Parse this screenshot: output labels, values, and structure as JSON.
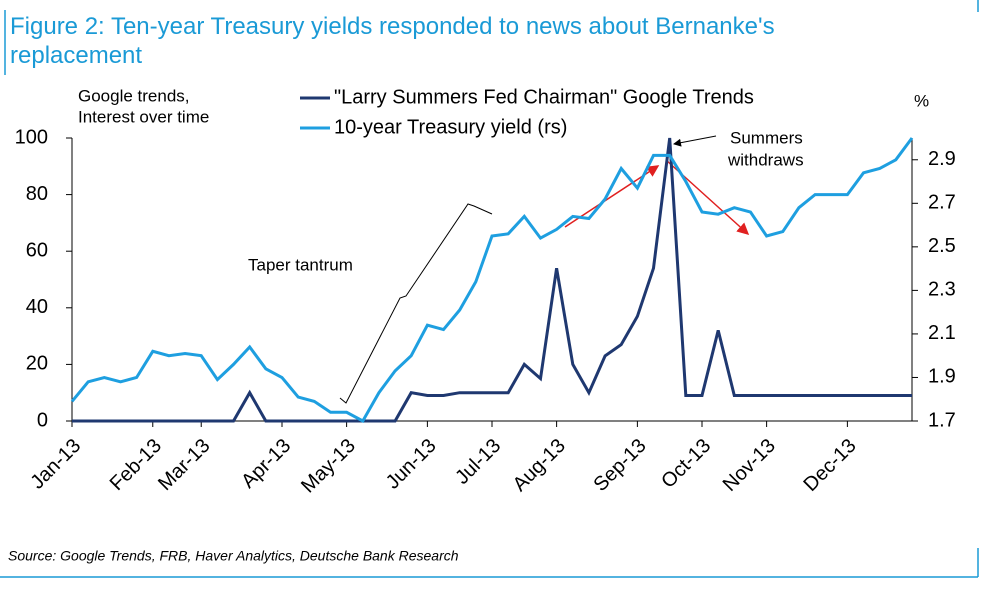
{
  "chart_data": {
    "type": "line",
    "title": "Figure 2: Ten-year Treasury yields responded to news about Bernanke's replacement",
    "ylabel": [
      "Google trends,",
      "Interest over time"
    ],
    "y2label": "%",
    "source": "Source: Google Trends, FRB, Haver Analytics, Deutsche Bank Research",
    "annotations": [
      "Taper tantrum",
      [
        "Summers",
        "withdraws"
      ]
    ],
    "categories": [
      "Jan-13",
      null,
      null,
      null,
      null,
      "Feb-13",
      null,
      null,
      "Mar-13",
      null,
      null,
      null,
      null,
      "Apr-13",
      null,
      null,
      null,
      "May-13",
      null,
      null,
      null,
      null,
      "Jun-13",
      null,
      null,
      null,
      "Jul-13",
      null,
      null,
      null,
      "Aug-13",
      null,
      null,
      null,
      null,
      "Sep-13",
      null,
      null,
      null,
      "Oct-13",
      null,
      null,
      null,
      "Nov-13",
      null,
      null,
      null,
      null,
      "Dec-13",
      null,
      null,
      null,
      null
    ],
    "series": [
      {
        "name": "\"Larry Summers Fed Chairman\" Google Trends",
        "color": "#1f3870",
        "values": [
          0,
          0,
          0,
          0,
          0,
          0,
          0,
          0,
          0,
          0,
          0,
          10,
          0,
          0,
          0,
          0,
          0,
          0,
          0,
          0,
          0,
          10,
          9,
          9,
          10,
          10,
          10,
          10,
          20,
          15,
          54,
          20,
          10,
          23,
          27,
          37,
          54,
          100,
          9,
          9,
          32,
          9,
          9,
          9,
          9,
          9,
          9,
          9,
          9,
          9,
          9,
          9,
          9
        ]
      },
      {
        "name": "10-year Treasury yield (rs)",
        "color": "#1e9fe0",
        "axis": "y2",
        "values": [
          1.79,
          1.88,
          1.9,
          1.88,
          1.9,
          2.02,
          2.0,
          2.01,
          2.0,
          1.89,
          1.96,
          2.04,
          1.94,
          1.9,
          1.81,
          1.79,
          1.74,
          1.74,
          1.7,
          1.83,
          1.93,
          2.0,
          2.14,
          2.12,
          2.21,
          2.34,
          2.55,
          2.56,
          2.64,
          2.54,
          2.58,
          2.64,
          2.63,
          2.72,
          2.86,
          2.77,
          2.92,
          2.92,
          2.8,
          2.66,
          2.65,
          2.68,
          2.66,
          2.55,
          2.57,
          2.68,
          2.74,
          2.74,
          2.74,
          2.84,
          2.86,
          2.9,
          3.0
        ]
      }
    ],
    "ylim": [
      0,
      100
    ],
    "yticks": [
      0,
      20,
      40,
      60,
      80,
      100
    ],
    "y2lim": [
      1.7,
      3.0
    ],
    "y2ticks": [
      1.7,
      1.9,
      2.1,
      2.3,
      2.5,
      2.7,
      2.9
    ],
    "grid": false
  }
}
